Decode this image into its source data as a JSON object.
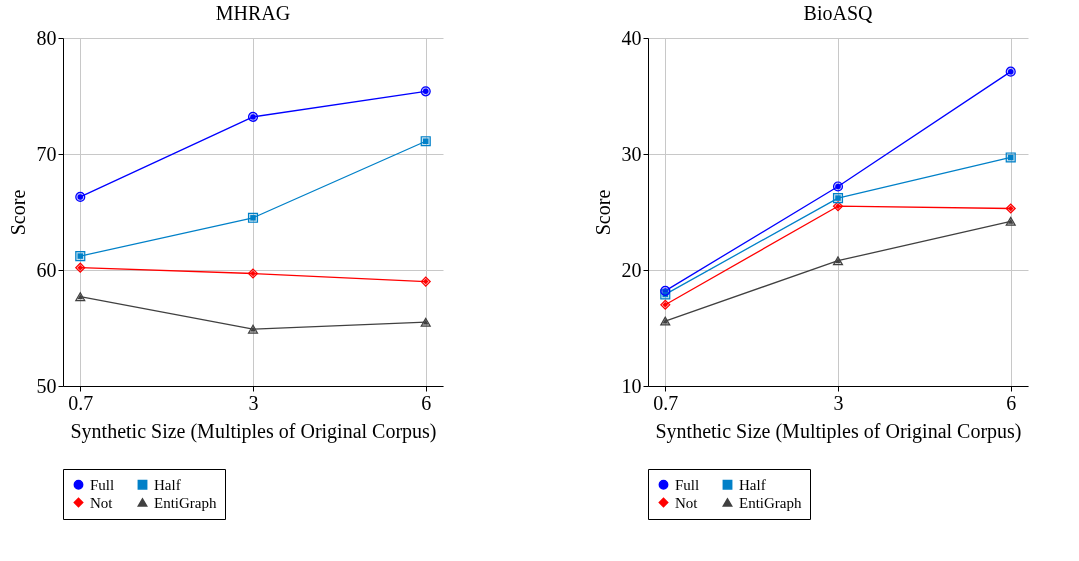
{
  "chart_data": [
    {
      "type": "line",
      "title": "MHRAG",
      "xlabel": "Synthetic Size (Multiples of Original Corpus)",
      "ylabel": "Score",
      "categories": [
        "0.7",
        "3",
        "6"
      ],
      "ylim": [
        50,
        80
      ],
      "yticks": [
        50,
        60,
        70,
        80
      ],
      "grid": true,
      "legend": "bottom",
      "line_style": "solid",
      "series": [
        {
          "name": "Full",
          "color": "#0000ff",
          "marker": "circle",
          "values": [
            66.3,
            73.2,
            75.4
          ]
        },
        {
          "name": "Half",
          "color": "#0080c8",
          "marker": "square",
          "values": [
            61.2,
            64.5,
            71.1
          ]
        },
        {
          "name": "Not",
          "color": "#ff0000",
          "marker": "diamond",
          "values": [
            60.2,
            59.7,
            59.0
          ]
        },
        {
          "name": "EntiGraph",
          "color": "#404040",
          "marker": "triangle",
          "values": [
            57.7,
            54.9,
            55.5
          ]
        }
      ]
    },
    {
      "type": "line",
      "title": "BioASQ",
      "xlabel": "Synthetic Size (Multiples of Original Corpus)",
      "ylabel": "Score",
      "categories": [
        "0.7",
        "3",
        "6"
      ],
      "ylim": [
        10,
        40
      ],
      "yticks": [
        10,
        20,
        30,
        40
      ],
      "grid": true,
      "legend": "bottom",
      "line_style": "solid",
      "series": [
        {
          "name": "Full",
          "color": "#0000ff",
          "marker": "circle",
          "values": [
            18.2,
            27.2,
            37.1
          ]
        },
        {
          "name": "Half",
          "color": "#0080c8",
          "marker": "square",
          "values": [
            17.9,
            26.2,
            29.7
          ]
        },
        {
          "name": "Not",
          "color": "#ff0000",
          "marker": "diamond",
          "values": [
            17.0,
            25.5,
            25.3
          ]
        },
        {
          "name": "EntiGraph",
          "color": "#404040",
          "marker": "triangle",
          "values": [
            15.6,
            20.8,
            24.2
          ]
        }
      ]
    }
  ]
}
